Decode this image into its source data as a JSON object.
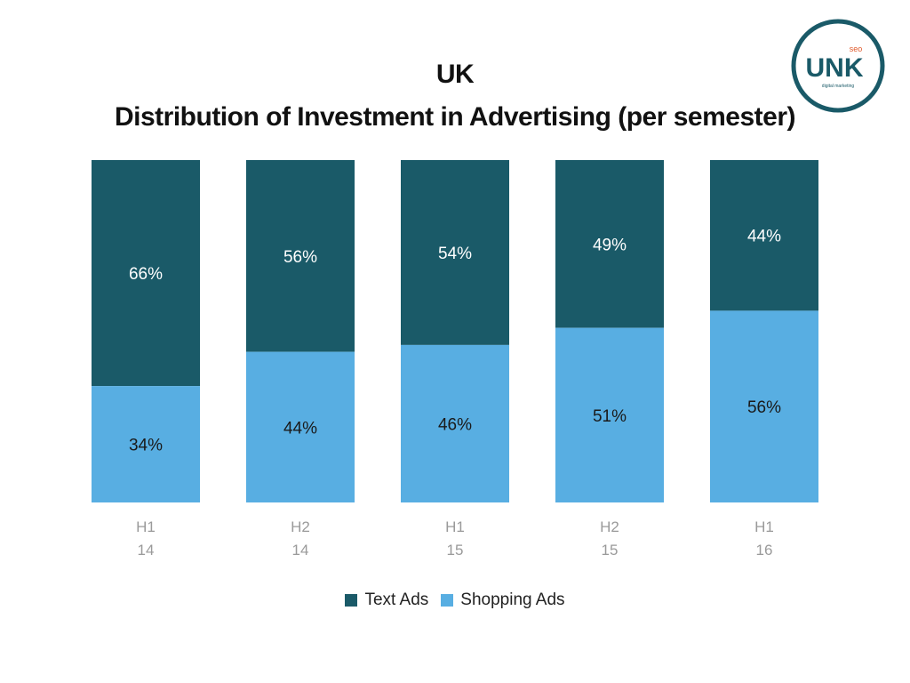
{
  "title": {
    "line1": "UK",
    "line2": "Distribution of Investment in Advertising (per semester)"
  },
  "logo": {
    "text": "UNK",
    "superscript": "seo",
    "tagline": "digital marketing",
    "ring_color": "#1a5a68",
    "accent_color": "#e0592a"
  },
  "colors": {
    "text_ads": "#1a5a68",
    "shopping_ads": "#58aee2",
    "tick_label": "#9a9a9a"
  },
  "chart_data": {
    "type": "bar",
    "stacked": true,
    "percent_stacked": true,
    "categories": [
      [
        "H1",
        "14"
      ],
      [
        "H2",
        "14"
      ],
      [
        "H1",
        "15"
      ],
      [
        "H2",
        "15"
      ],
      [
        "H1",
        "16"
      ]
    ],
    "series": [
      {
        "name": "Shopping Ads",
        "color": "#58aee2",
        "values": [
          34,
          44,
          46,
          51,
          56
        ],
        "labels": [
          "34%",
          "44%",
          "46%",
          "51%",
          "56%"
        ]
      },
      {
        "name": "Text Ads",
        "color": "#1a5a68",
        "values": [
          66,
          56,
          54,
          49,
          44
        ],
        "labels": [
          "66%",
          "56%",
          "54%",
          "49%",
          "44%"
        ]
      }
    ],
    "ylim": [
      0,
      100
    ],
    "grid": false,
    "legend_position": "bottom",
    "legend_order": [
      "Text Ads",
      "Shopping Ads"
    ]
  }
}
